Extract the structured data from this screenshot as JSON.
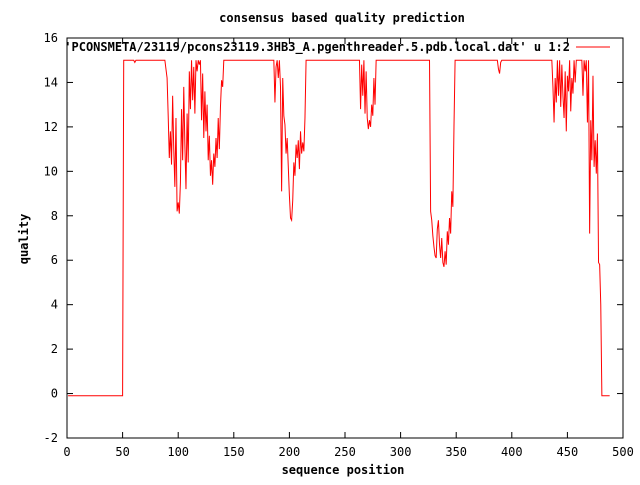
{
  "chart_data": {
    "type": "line",
    "title": "consensus based quality prediction",
    "xlabel": "sequence position",
    "ylabel": "quality",
    "xlim": [
      0,
      500
    ],
    "ylim": [
      -2,
      16
    ],
    "xticks": [
      0,
      50,
      100,
      150,
      200,
      250,
      300,
      350,
      400,
      450,
      500
    ],
    "yticks": [
      -2,
      0,
      2,
      4,
      6,
      8,
      10,
      12,
      14,
      16
    ],
    "grid": false,
    "legend_position": "top-right",
    "series": [
      {
        "name": "'PCONSMETA/23119/pcons23119.3HB3_A.pgenthreader.5.pdb.local.dat' u 1:2",
        "color": "#ff0000",
        "points": [
          [
            1,
            -0.1
          ],
          [
            50,
            -0.1
          ],
          [
            50.5,
            7.6
          ],
          [
            51,
            15
          ],
          [
            60,
            15
          ],
          [
            61,
            14.9
          ],
          [
            62,
            15
          ],
          [
            88,
            15
          ],
          [
            90,
            14.2
          ],
          [
            91,
            12.5
          ],
          [
            92,
            10.6
          ],
          [
            93,
            11.8
          ],
          [
            94,
            10.3
          ],
          [
            95,
            13.4
          ],
          [
            96,
            11
          ],
          [
            97,
            9.3
          ],
          [
            98,
            12.4
          ],
          [
            99,
            8.2
          ],
          [
            100,
            8.6
          ],
          [
            101,
            8.1
          ],
          [
            102,
            9.5
          ],
          [
            103,
            12.8
          ],
          [
            104,
            10.5
          ],
          [
            105,
            13.8
          ],
          [
            106,
            11.2
          ],
          [
            107,
            9.2
          ],
          [
            108,
            12.6
          ],
          [
            109,
            10.4
          ],
          [
            110,
            14.5
          ],
          [
            111,
            12.8
          ],
          [
            112,
            15
          ],
          [
            113,
            13.2
          ],
          [
            114,
            14.7
          ],
          [
            115,
            12.6
          ],
          [
            116,
            15
          ],
          [
            117,
            14.5
          ],
          [
            118,
            15
          ],
          [
            119,
            14.8
          ],
          [
            120,
            15
          ],
          [
            121,
            12.3
          ],
          [
            122,
            14.4
          ],
          [
            123,
            11.5
          ],
          [
            124,
            13.6
          ],
          [
            125,
            11.8
          ],
          [
            126,
            13
          ],
          [
            127,
            10.5
          ],
          [
            128,
            11.6
          ],
          [
            129,
            9.8
          ],
          [
            130,
            10.5
          ],
          [
            131,
            9.4
          ],
          [
            132,
            10.8
          ],
          [
            133,
            10.2
          ],
          [
            134,
            11.5
          ],
          [
            135,
            10.6
          ],
          [
            136,
            12.4
          ],
          [
            137,
            11
          ],
          [
            138,
            12.9
          ],
          [
            139,
            14.1
          ],
          [
            140,
            13.8
          ],
          [
            141,
            15
          ],
          [
            186,
            15
          ],
          [
            187,
            13.1
          ],
          [
            188,
            14.7
          ],
          [
            189,
            15
          ],
          [
            190,
            14.2
          ],
          [
            191,
            15
          ],
          [
            192,
            13.8
          ],
          [
            193,
            9.1
          ],
          [
            194,
            14.2
          ],
          [
            195,
            12.5
          ],
          [
            196,
            12.1
          ],
          [
            197,
            10.8
          ],
          [
            198,
            11.5
          ],
          [
            199,
            10.2
          ],
          [
            200,
            8.9
          ],
          [
            201,
            7.9
          ],
          [
            202,
            7.8
          ],
          [
            203,
            8.7
          ],
          [
            204,
            10.4
          ],
          [
            205,
            9.8
          ],
          [
            206,
            11.2
          ],
          [
            207,
            10.6
          ],
          [
            208,
            11.4
          ],
          [
            209,
            10.1
          ],
          [
            210,
            11.8
          ],
          [
            211,
            10.8
          ],
          [
            212,
            11.3
          ],
          [
            213,
            10.9
          ],
          [
            214,
            12.4
          ],
          [
            215,
            15
          ],
          [
            263,
            15
          ],
          [
            264,
            12.8
          ],
          [
            265,
            14.8
          ],
          [
            266,
            13.4
          ],
          [
            267,
            15
          ],
          [
            268,
            12.6
          ],
          [
            269,
            14.5
          ],
          [
            270,
            12.4
          ],
          [
            271,
            11.9
          ],
          [
            272,
            12.3
          ],
          [
            273,
            12
          ],
          [
            274,
            13
          ],
          [
            275,
            12.5
          ],
          [
            276,
            14.2
          ],
          [
            277,
            13
          ],
          [
            278,
            15
          ],
          [
            326,
            15
          ],
          [
            327,
            8.2
          ],
          [
            328,
            7.8
          ],
          [
            329,
            7.1
          ],
          [
            330,
            6.6
          ],
          [
            331,
            6.2
          ],
          [
            332,
            6.1
          ],
          [
            333,
            7.4
          ],
          [
            334,
            7.8
          ],
          [
            335,
            6.7
          ],
          [
            336,
            6.1
          ],
          [
            337,
            7
          ],
          [
            338,
            5.9
          ],
          [
            339,
            5.7
          ],
          [
            340,
            6.4
          ],
          [
            341,
            5.8
          ],
          [
            342,
            7.3
          ],
          [
            343,
            6.7
          ],
          [
            344,
            7.9
          ],
          [
            345,
            7.2
          ],
          [
            346,
            9.1
          ],
          [
            347,
            8.4
          ],
          [
            348,
            12
          ],
          [
            349,
            15
          ],
          [
            387,
            15
          ],
          [
            388,
            14.6
          ],
          [
            389,
            14.4
          ],
          [
            390,
            14.9
          ],
          [
            391,
            15
          ],
          [
            436,
            15
          ],
          [
            437,
            13.8
          ],
          [
            438,
            12.2
          ],
          [
            439,
            14.2
          ],
          [
            440,
            13.1
          ],
          [
            441,
            15
          ],
          [
            442,
            13.4
          ],
          [
            443,
            15
          ],
          [
            444,
            12.9
          ],
          [
            445,
            14.8
          ],
          [
            446,
            13.4
          ],
          [
            447,
            12.4
          ],
          [
            448,
            14.5
          ],
          [
            449,
            11.8
          ],
          [
            450,
            14.3
          ],
          [
            451,
            13.6
          ],
          [
            452,
            15
          ],
          [
            453,
            12.7
          ],
          [
            454,
            14.2
          ],
          [
            455,
            13.5
          ],
          [
            456,
            15
          ],
          [
            457,
            14
          ],
          [
            458,
            15
          ],
          [
            463,
            15
          ],
          [
            464,
            13.4
          ],
          [
            465,
            15
          ],
          [
            466,
            14.5
          ],
          [
            467,
            15
          ],
          [
            468,
            12.2
          ],
          [
            469,
            15
          ],
          [
            470,
            7.2
          ],
          [
            471,
            12.3
          ],
          [
            472,
            10.5
          ],
          [
            473,
            14.3
          ],
          [
            474,
            10.2
          ],
          [
            475,
            11.4
          ],
          [
            476,
            9.9
          ],
          [
            477,
            11.7
          ],
          [
            478,
            5.9
          ],
          [
            479,
            5.8
          ],
          [
            480,
            4
          ],
          [
            481,
            -0.1
          ],
          [
            488,
            -0.1
          ]
        ]
      }
    ]
  }
}
